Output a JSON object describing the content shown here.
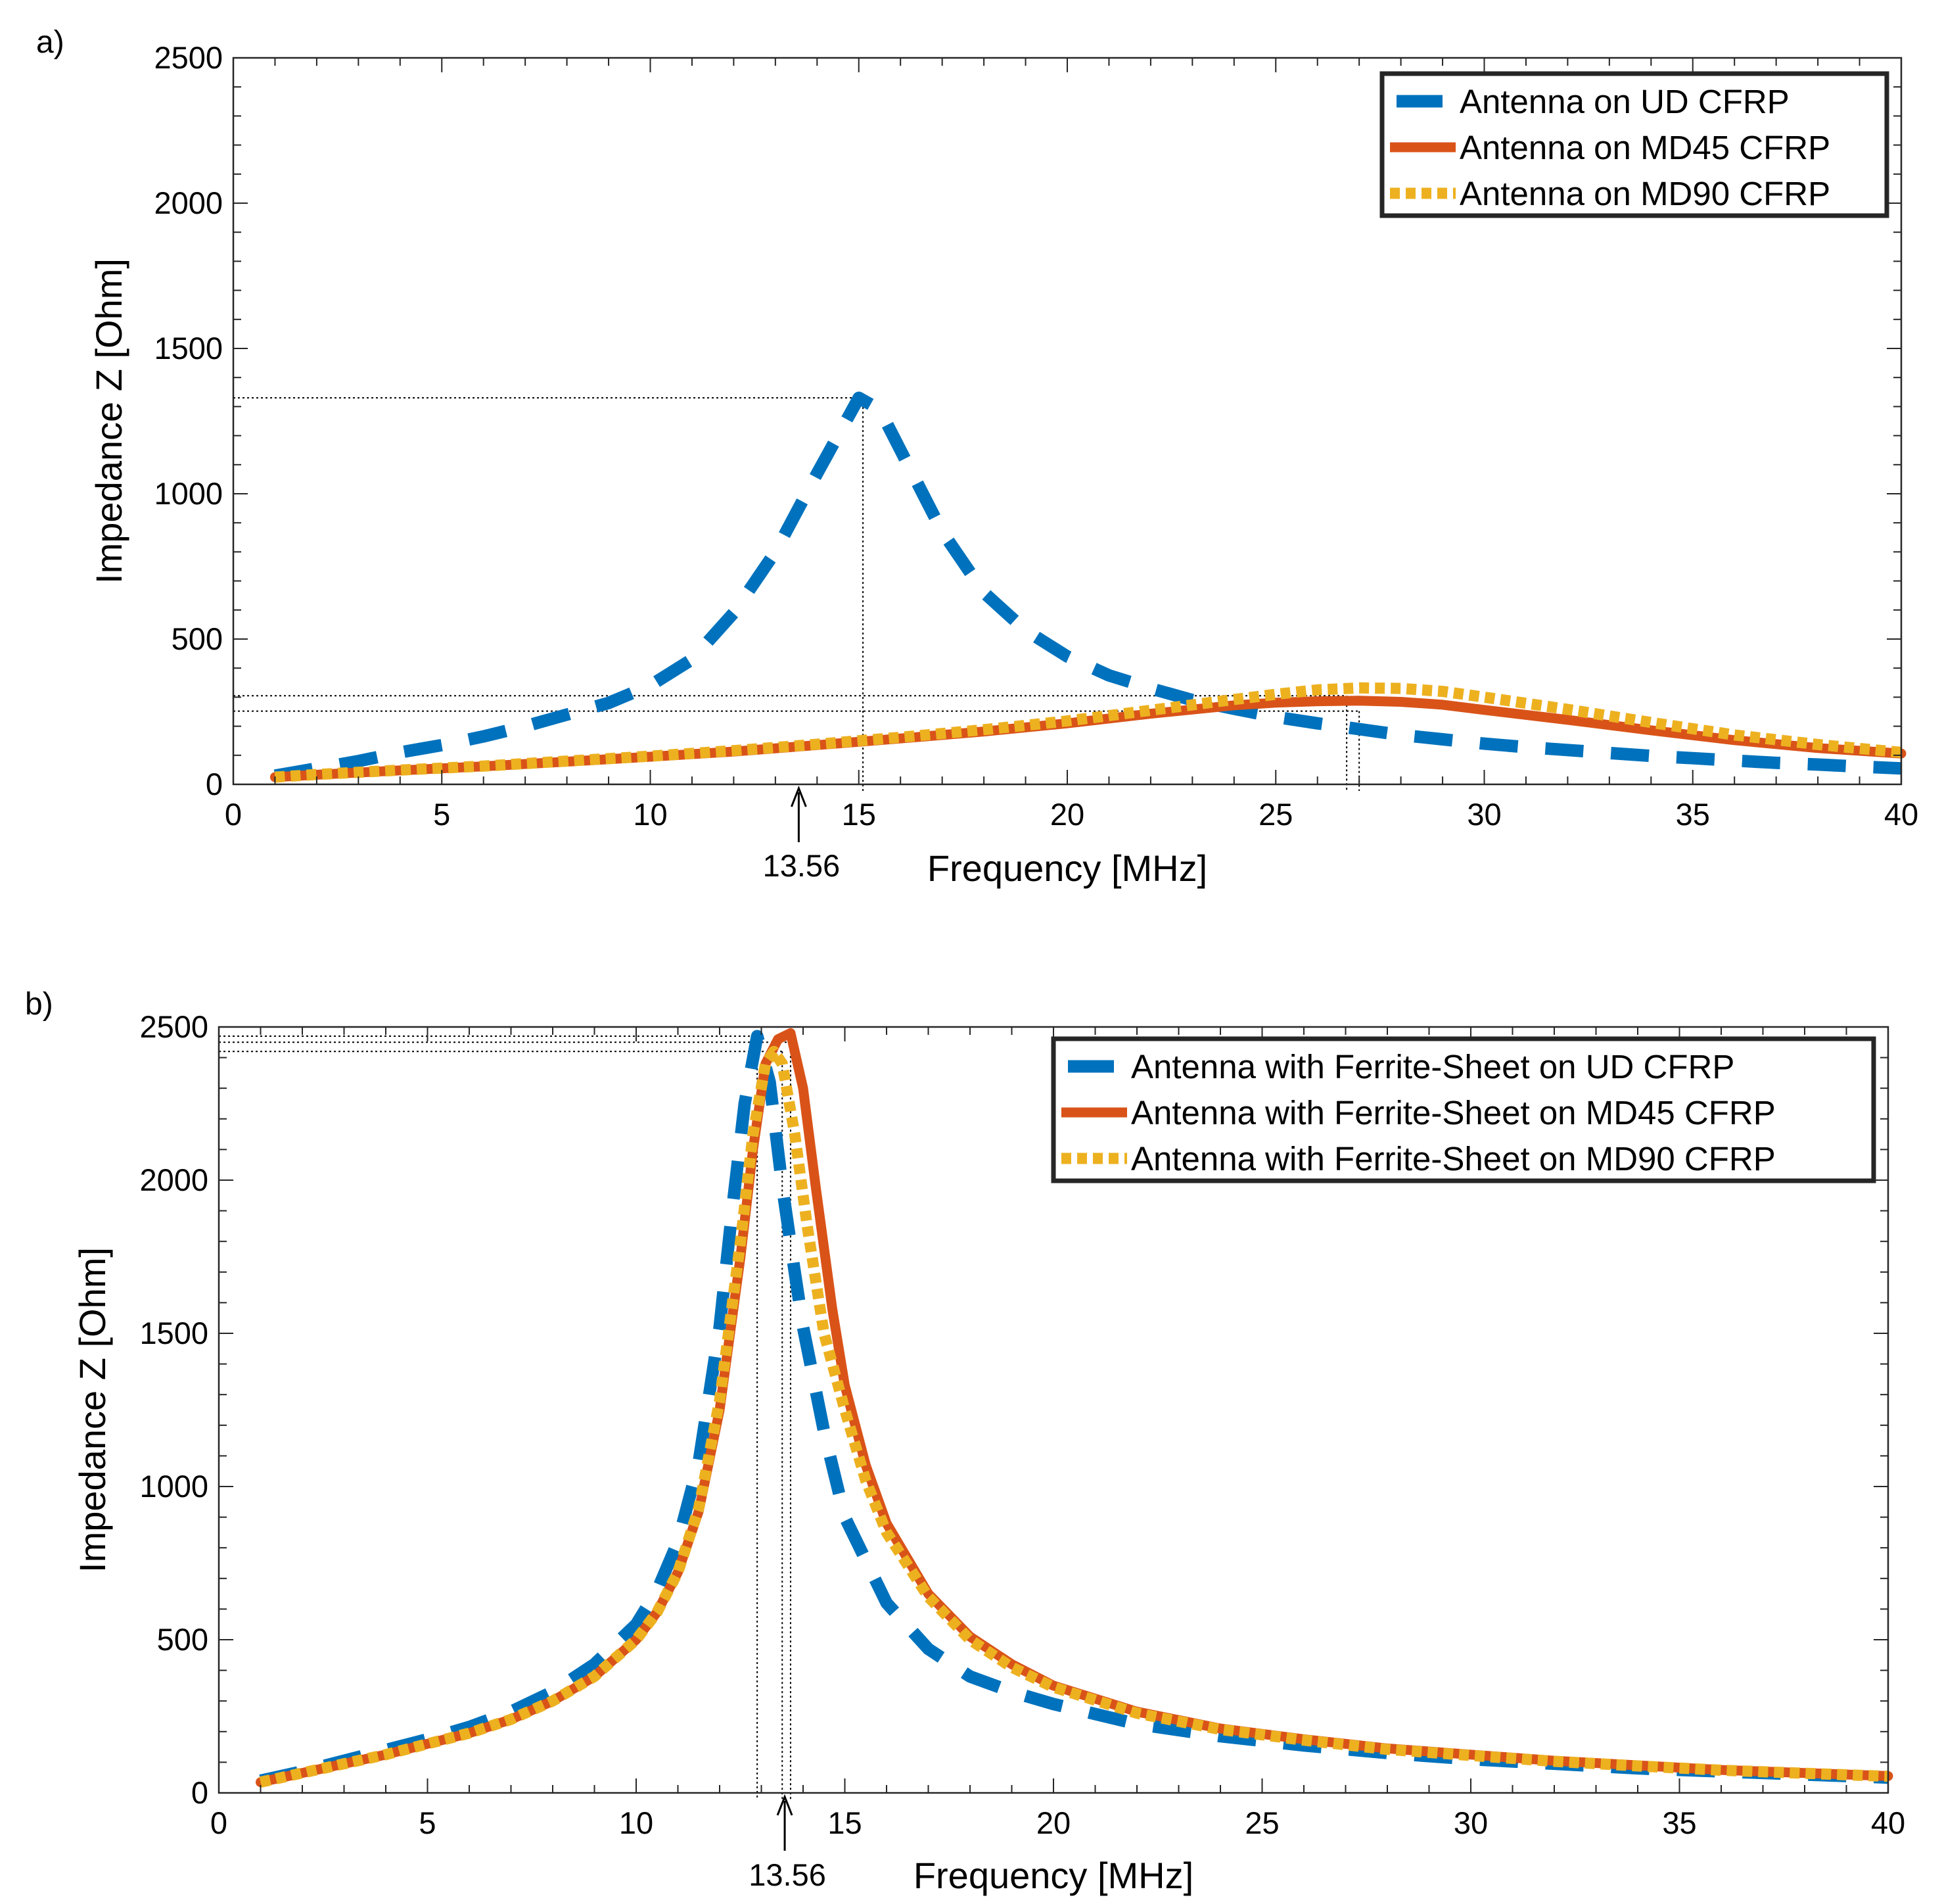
{
  "chart_data": [
    {
      "panel_label": "a)",
      "type": "line",
      "xlabel": "Frequency [MHz]",
      "ylabel": "Impedance Z [Ohm]",
      "xlim": [
        0,
        40
      ],
      "ylim": [
        0,
        2500
      ],
      "xticks": [
        0,
        5,
        10,
        15,
        20,
        25,
        30,
        35,
        40
      ],
      "yticks": [
        0,
        500,
        1000,
        1500,
        2000,
        2500
      ],
      "grid": false,
      "legend_position": "top-right",
      "annotation": {
        "text": "13.56",
        "x": 13.56
      },
      "reference_lines": [
        {
          "x": 15.1,
          "y": 1330
        },
        {
          "x": 26.7,
          "y": 305
        },
        {
          "x": 27.0,
          "y": 252
        }
      ],
      "series": [
        {
          "name": "Antenna on UD CFRP",
          "color": "#0072BD",
          "style": "dashed",
          "x": [
            1,
            2,
            3,
            4,
            5,
            6,
            7,
            8,
            9,
            10,
            11,
            12,
            13,
            14,
            15,
            15.5,
            16,
            17,
            18,
            19,
            20,
            21,
            22,
            23,
            24,
            25,
            26,
            27,
            28,
            29,
            30,
            31,
            32,
            33,
            34,
            35,
            36,
            37,
            38,
            39,
            40
          ],
          "y": [
            30,
            55,
            80,
            110,
            135,
            165,
            200,
            240,
            280,
            340,
            430,
            590,
            800,
            1070,
            1330,
            1290,
            1150,
            870,
            660,
            530,
            440,
            375,
            330,
            290,
            260,
            232,
            210,
            190,
            170,
            155,
            140,
            128,
            118,
            108,
            98,
            90,
            82,
            74,
            68,
            61,
            55
          ]
        },
        {
          "name": "Antenna on MD45 CFRP",
          "color": "#D95319",
          "style": "solid",
          "x": [
            1,
            2,
            4,
            6,
            8,
            10,
            12,
            14,
            16,
            18,
            20,
            22,
            24,
            25,
            26,
            27,
            28,
            29,
            30,
            32,
            34,
            36,
            38,
            40
          ],
          "y": [
            25,
            33,
            48,
            62,
            78,
            95,
            113,
            135,
            158,
            182,
            210,
            243,
            272,
            281,
            286,
            288,
            284,
            274,
            256,
            222,
            186,
            152,
            125,
            106
          ]
        },
        {
          "name": "Antenna on MD90 CFRP",
          "color": "#EDB120",
          "style": "dotted",
          "x": [
            1,
            2,
            4,
            6,
            8,
            10,
            12,
            14,
            16,
            18,
            20,
            22,
            24,
            25,
            26,
            27,
            28,
            29,
            30,
            32,
            34,
            36,
            38,
            40
          ],
          "y": [
            25,
            34,
            49,
            63,
            80,
            97,
            116,
            138,
            162,
            188,
            218,
            255,
            292,
            310,
            325,
            332,
            330,
            320,
            300,
            258,
            213,
            170,
            137,
            110
          ]
        }
      ]
    },
    {
      "panel_label": "b)",
      "type": "line",
      "xlabel": "Frequency [MHz]",
      "ylabel": "Impedance Z [Ohm]",
      "xlim": [
        0,
        40
      ],
      "ylim": [
        0,
        2500
      ],
      "xticks": [
        0,
        5,
        10,
        15,
        20,
        25,
        30,
        35,
        40
      ],
      "yticks": [
        0,
        500,
        1000,
        1500,
        2000,
        2500
      ],
      "grid": false,
      "legend_position": "top-right",
      "annotation": {
        "text": "13.56",
        "x": 13.56
      },
      "reference_lines": [
        {
          "x": 12.9,
          "y": 2470
        },
        {
          "x": 13.7,
          "y": 2450
        },
        {
          "x": 13.5,
          "y": 2420
        }
      ],
      "series": [
        {
          "name": "Antenna with Ferrite-Sheet on UD CFRP",
          "color": "#0072BD",
          "style": "dashed",
          "x": [
            1,
            2,
            3,
            4,
            5,
            6,
            7,
            8,
            9,
            10,
            10.5,
            11,
            11.5,
            12,
            12.3,
            12.6,
            12.9,
            13.2,
            13.5,
            13.8,
            14,
            14.5,
            15,
            16,
            17,
            18,
            19,
            20,
            22,
            24,
            26,
            28,
            30,
            32,
            34,
            36,
            38,
            40
          ],
          "y": [
            40,
            70,
            105,
            140,
            175,
            215,
            265,
            330,
            420,
            550,
            660,
            820,
            1080,
            1520,
            1900,
            2250,
            2470,
            2320,
            1980,
            1700,
            1520,
            1180,
            900,
            620,
            470,
            380,
            330,
            290,
            225,
            185,
            155,
            130,
            110,
            95,
            80,
            70,
            60,
            50
          ]
        },
        {
          "name": "Antenna with Ferrite-Sheet on MD45 CFRP",
          "color": "#D95319",
          "style": "solid",
          "x": [
            1,
            2,
            3,
            4,
            5,
            6,
            7,
            8,
            9,
            10,
            10.5,
            11,
            11.5,
            12,
            12.5,
            12.8,
            13.1,
            13.4,
            13.7,
            14,
            14.3,
            14.7,
            15,
            15.5,
            16,
            17,
            18,
            19,
            20,
            22,
            24,
            26,
            28,
            30,
            32,
            34,
            36,
            38,
            40
          ],
          "y": [
            35,
            65,
            95,
            125,
            160,
            195,
            240,
            300,
            380,
            500,
            590,
            720,
            920,
            1250,
            1750,
            2100,
            2380,
            2460,
            2480,
            2300,
            1980,
            1580,
            1330,
            1070,
            880,
            650,
            510,
            420,
            350,
            265,
            210,
            175,
            145,
            125,
            105,
            90,
            75,
            65,
            55
          ]
        },
        {
          "name": "Antenna with Ferrite-Sheet on MD90 CFRP",
          "color": "#EDB120",
          "style": "dotted",
          "x": [
            1,
            2,
            3,
            4,
            5,
            6,
            7,
            8,
            9,
            10,
            10.5,
            11,
            11.5,
            12,
            12.5,
            12.8,
            13.1,
            13.3,
            13.5,
            13.8,
            14.1,
            14.5,
            15,
            15.5,
            16,
            17,
            18,
            19,
            20,
            22,
            24,
            26,
            28,
            30,
            32,
            34,
            36,
            38,
            40
          ],
          "y": [
            35,
            65,
            95,
            125,
            160,
            195,
            240,
            300,
            380,
            500,
            590,
            720,
            930,
            1280,
            1800,
            2150,
            2380,
            2420,
            2380,
            2150,
            1850,
            1500,
            1250,
            1020,
            850,
            640,
            500,
            410,
            345,
            260,
            207,
            172,
            142,
            122,
            103,
            88,
            74,
            64,
            54
          ]
        }
      ]
    }
  ]
}
